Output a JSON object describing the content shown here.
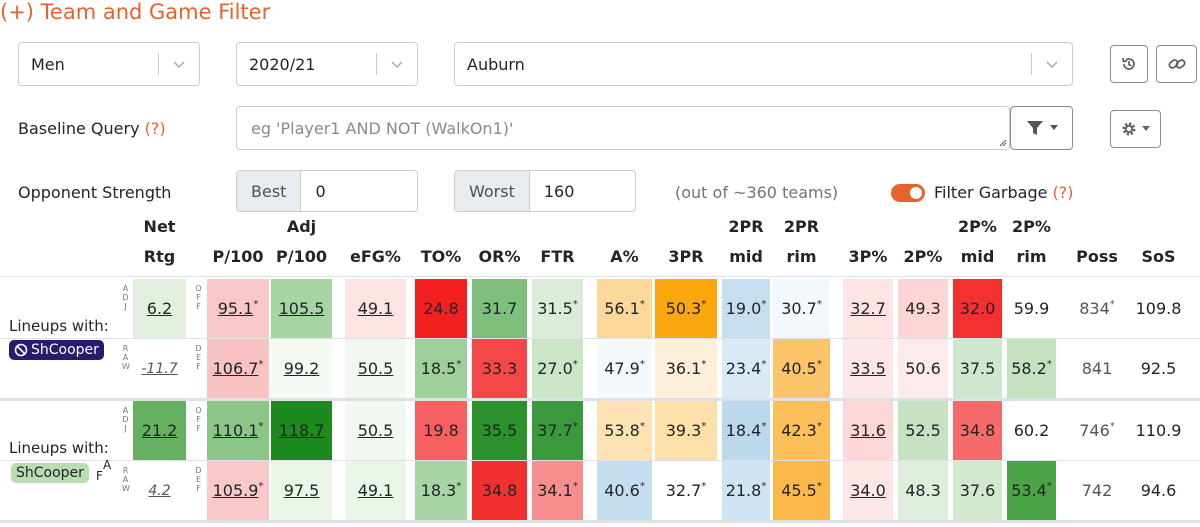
{
  "title": "(+) Team and Game Filter",
  "filters": {
    "gender": "Men",
    "season": "2020/21",
    "team": "Auburn",
    "baseline_label": "Baseline Query",
    "help": "(?)",
    "query_placeholder": "eg 'Player1 AND NOT (WalkOn1)'",
    "opponent_label": "Opponent Strength",
    "best_label": "Best",
    "best_value": "0",
    "worst_label": "Worst",
    "worst_value": "160",
    "out_of": "(out of ~360 teams)",
    "garbage_label": "Filter Garbage",
    "garbage_on": true
  },
  "columns": [
    {
      "l1": "Net",
      "l2": "Rtg"
    },
    {
      "l1": "",
      "l2": "P/100"
    },
    {
      "l1": "Adj",
      "l2": "P/100"
    },
    {
      "l1": "",
      "l2": "eFG%"
    },
    {
      "l1": "",
      "l2": "TO%"
    },
    {
      "l1": "",
      "l2": "OR%"
    },
    {
      "l1": "",
      "l2": "FTR"
    },
    {
      "l1": "",
      "l2": "A%"
    },
    {
      "l1": "",
      "l2": "3PR"
    },
    {
      "l1": "2PR",
      "l2": "mid"
    },
    {
      "l1": "2PR",
      "l2": "rim"
    },
    {
      "l1": "",
      "l2": "3P%"
    },
    {
      "l1": "",
      "l2": "2P%"
    },
    {
      "l1": "2P%",
      "l2": "mid"
    },
    {
      "l1": "2P%",
      "l2": "rim"
    },
    {
      "l1": "",
      "l2": "Poss"
    },
    {
      "l1": "",
      "l2": "SoS"
    }
  ],
  "side_labels": {
    "adj": "ADJ",
    "raw": "RAW",
    "off": "OFF",
    "def": "DEF"
  },
  "groups": [
    {
      "label": "Lineups with:",
      "badge": "ShCooper",
      "badge_icon": "ban-icon",
      "badge_bg": "#2a1a6e",
      "badge_color": "#ffffff",
      "badge_suffix": "",
      "rows": [
        [
          {
            "t": "6.2",
            "bg": "#e2efdf",
            "s": "u"
          },
          {
            "t": "95.1",
            "bg": "#f9c9c9",
            "s": "u",
            "a": "*"
          },
          {
            "t": "105.5",
            "bg": "#a7d4a3",
            "s": "u"
          },
          {
            "t": "49.1",
            "bg": "#fde3e3",
            "s": "u"
          },
          {
            "t": "24.8",
            "bg": "#f32020",
            "s": ""
          },
          {
            "t": "31.7",
            "bg": "#7fbf7b",
            "s": ""
          },
          {
            "t": "31.5",
            "bg": "#dbedd8",
            "s": "",
            "a": "*"
          },
          {
            "t": "56.1",
            "bg": "#fcd99a",
            "s": "",
            "a": "*"
          },
          {
            "t": "50.3",
            "bg": "#fca70d",
            "s": "",
            "a": "*"
          },
          {
            "t": "19.0",
            "bg": "#c5dff0",
            "s": "",
            "a": "*"
          },
          {
            "t": "30.7",
            "bg": "#f2f8fc",
            "s": "",
            "a": "*"
          },
          {
            "t": "32.7",
            "bg": "#fde3e3",
            "s": "u"
          },
          {
            "t": "49.3",
            "bg": "#fcd6d6",
            "s": ""
          },
          {
            "t": "32.0",
            "bg": "#f33131",
            "s": ""
          },
          {
            "t": "59.9",
            "bg": "#ffffff",
            "s": ""
          },
          {
            "t": "834",
            "bg": "#ffffff",
            "s": "g",
            "a": "*"
          },
          {
            "t": "109.8",
            "bg": "#ffffff",
            "s": ""
          }
        ],
        [
          {
            "t": "-11.7",
            "bg": "#ffffff",
            "s": "it"
          },
          {
            "t": "106.7",
            "bg": "#f9c3c3",
            "s": "u",
            "a": "*"
          },
          {
            "t": "99.2",
            "bg": "#f4f9f3",
            "s": "u"
          },
          {
            "t": "50.5",
            "bg": "#f2f8f1",
            "s": "u"
          },
          {
            "t": "18.5",
            "bg": "#9fcf9b",
            "s": "",
            "a": "*"
          },
          {
            "t": "33.3",
            "bg": "#f44848",
            "s": ""
          },
          {
            "t": "27.0",
            "bg": "#cbe5c7",
            "s": "",
            "a": "*"
          },
          {
            "t": "47.9",
            "bg": "#f4f9fd",
            "s": "",
            "a": "*"
          },
          {
            "t": "36.1",
            "bg": "#fdf0d8",
            "s": "",
            "a": "*"
          },
          {
            "t": "23.4",
            "bg": "#d9eaf5",
            "s": "",
            "a": "*"
          },
          {
            "t": "40.5",
            "bg": "#fcc56a",
            "s": "",
            "a": "*"
          },
          {
            "t": "33.5",
            "bg": "#fde6e6",
            "s": "u"
          },
          {
            "t": "50.6",
            "bg": "#fdeaea",
            "s": ""
          },
          {
            "t": "37.5",
            "bg": "#cfe7cc",
            "s": ""
          },
          {
            "t": "58.2",
            "bg": "#c4e1c0",
            "s": "",
            "a": "*"
          },
          {
            "t": "841",
            "bg": "#ffffff",
            "s": "g"
          },
          {
            "t": "92.5",
            "bg": "#ffffff",
            "s": ""
          }
        ]
      ]
    },
    {
      "label": "Lineups with:",
      "badge": "ShCooper",
      "badge_icon": "",
      "badge_bg": "#b9dcb3",
      "badge_color": "#212529",
      "badge_suffix": "A",
      "badge_sub": "F",
      "rows": [
        [
          {
            "t": "21.2",
            "bg": "#66b061",
            "s": "u"
          },
          {
            "t": "110.1",
            "bg": "#8cc588",
            "s": "u",
            "a": "*"
          },
          {
            "t": "118.7",
            "bg": "#1d8a1d",
            "s": "u"
          },
          {
            "t": "50.5",
            "bg": "#f2f8f1",
            "s": "u"
          },
          {
            "t": "19.8",
            "bg": "#f76060",
            "s": ""
          },
          {
            "t": "35.5",
            "bg": "#2b922b",
            "s": ""
          },
          {
            "t": "37.7",
            "bg": "#3a993a",
            "s": "",
            "a": "*"
          },
          {
            "t": "53.8",
            "bg": "#fde3b3",
            "s": "",
            "a": "*"
          },
          {
            "t": "39.3",
            "bg": "#fddfa8",
            "s": "",
            "a": "*"
          },
          {
            "t": "18.4",
            "bg": "#bcd9ec",
            "s": "",
            "a": "*"
          },
          {
            "t": "42.3",
            "bg": "#fcbf59",
            "s": "",
            "a": "*"
          },
          {
            "t": "31.6",
            "bg": "#fdd7d7",
            "s": "u"
          },
          {
            "t": "52.5",
            "bg": "#c6e2c2",
            "s": ""
          },
          {
            "t": "34.8",
            "bg": "#f66a6a",
            "s": ""
          },
          {
            "t": "60.2",
            "bg": "#ffffff",
            "s": ""
          },
          {
            "t": "746",
            "bg": "#ffffff",
            "s": "g",
            "a": "*"
          },
          {
            "t": "110.9",
            "bg": "#ffffff",
            "s": ""
          }
        ],
        [
          {
            "t": "4.2",
            "bg": "#ffffff",
            "s": "it"
          },
          {
            "t": "105.9",
            "bg": "#f9c9c9",
            "s": "u",
            "a": "*"
          },
          {
            "t": "97.5",
            "bg": "#eaf5e8",
            "s": "u"
          },
          {
            "t": "49.1",
            "bg": "#eaf5e8",
            "s": "u"
          },
          {
            "t": "18.3",
            "bg": "#a9d4a5",
            "s": "",
            "a": "*"
          },
          {
            "t": "34.8",
            "bg": "#f33030",
            "s": ""
          },
          {
            "t": "34.1",
            "bg": "#f78e8e",
            "s": "",
            "a": "*"
          },
          {
            "t": "40.6",
            "bg": "#c4def0",
            "s": "",
            "a": "*"
          },
          {
            "t": "32.7",
            "bg": "#ffffff",
            "s": "",
            "a": "*"
          },
          {
            "t": "21.8",
            "bg": "#cfe4f3",
            "s": "",
            "a": "*"
          },
          {
            "t": "45.5",
            "bg": "#fcb94a",
            "s": "",
            "a": "*"
          },
          {
            "t": "34.0",
            "bg": "#fde6e6",
            "s": "u"
          },
          {
            "t": "48.3",
            "bg": "#deeedb",
            "s": ""
          },
          {
            "t": "37.6",
            "bg": "#d2e9cf",
            "s": ""
          },
          {
            "t": "53.4",
            "bg": "#4aa345",
            "s": "",
            "a": "*"
          },
          {
            "t": "742",
            "bg": "#ffffff",
            "s": "g"
          },
          {
            "t": "94.6",
            "bg": "#ffffff",
            "s": ""
          }
        ]
      ]
    }
  ]
}
